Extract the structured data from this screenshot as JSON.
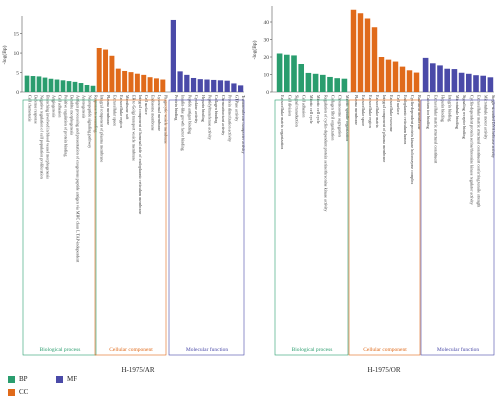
{
  "colors": {
    "bp": "#2a9d6e",
    "cc": "#e06a1a",
    "mf": "#4a4aa8",
    "axis": "#555555",
    "text": "#333333"
  },
  "legend": [
    {
      "key": "bp",
      "label": "BP"
    },
    {
      "key": "mf",
      "label": "MF"
    },
    {
      "key": "cc",
      "label": "CC"
    }
  ],
  "chart_data": [
    {
      "type": "bar",
      "title": "H-1975/AR",
      "ylabel": "-log(Bp)",
      "yticks": [
        0,
        5,
        10,
        15
      ],
      "ylim": [
        0,
        19
      ],
      "groups": [
        {
          "key": "bp",
          "label": "Biological process",
          "categories": [
            "Cell chemotaxis",
            "Defense response",
            "Negative regulation of cell population proliferation",
            "Branching involved in blood vessel morphogenesis",
            "Angiogenesis",
            "Cell adhesion",
            "Positive regulation of protein binding",
            "Dendrite morphogenesis",
            "Antigen processing and presentation of exogenous peptide antigen via MHC class I, TAP-independent",
            "Axonogenesis",
            "Neuropeptide signaling pathway",
            "Response to wounding"
          ],
          "values": [
            4.2,
            4.1,
            4.0,
            3.7,
            3.4,
            3.2,
            3.0,
            2.8,
            2.6,
            2.3,
            1.8,
            1.6
          ]
        },
        {
          "key": "cc",
          "label": "Cellular component",
          "categories": [
            "Integral component of plasma membrane",
            "Plasma membrane",
            "Extracellular space",
            "Extracellular region",
            "Membrane raft",
            "ER to Golgi transport vesicle membrane",
            "Integral component of lumenal side of endoplasmic reticulum membrane",
            "Cell surface",
            "Endosome membrane",
            "Lysosomal membrane",
            "Phagocytic vesicle membrane"
          ],
          "values": [
            11.3,
            10.9,
            9.3,
            6.0,
            5.4,
            5.1,
            4.7,
            4.4,
            3.8,
            3.5,
            3.2
          ]
        },
        {
          "key": "mf",
          "label": "Molecular function",
          "categories": [
            "Protein binding",
            "Insulin-like growth factor binding",
            "Peptide antigen binding",
            "Cytokine activity",
            "Heparin binding",
            "Peptidyltransferase activity",
            "Collagen binding",
            "Chemoattractant activity",
            "Protein dimerization activity",
            "GTPase activity",
            "Transmembrane transporter activity"
          ],
          "values": [
            18.5,
            5.3,
            4.4,
            3.6,
            3.3,
            3.2,
            3.1,
            3.0,
            2.9,
            2.2,
            1.7
          ]
        }
      ]
    },
    {
      "type": "bar",
      "title": "H-1975/OR",
      "ylabel": "-log(Bp)",
      "yticks": [
        0,
        10,
        20,
        30,
        40
      ],
      "ylim": [
        0,
        48
      ],
      "groups": [
        {
          "key": "bp",
          "label": "Biological process",
          "categories": [
            "Extracellular matrix organization",
            "Cell division",
            "Signal transduction",
            "Cell adhesion",
            "Mitotic cell cycle",
            "Mitotic cell cycle",
            "Regulation of cyclin-dependent protein serine/threonine kinase activity",
            "Collagen fibril organization",
            "Chromosome segregation",
            "Mitotic spindle organization"
          ],
          "values": [
            22.0,
            21.3,
            20.9,
            16.0,
            10.9,
            10.4,
            9.8,
            8.6,
            7.9,
            7.6
          ]
        },
        {
          "key": "cc",
          "label": "Cellular component",
          "categories": [
            "Plasma membrane",
            "Extracellular space",
            "Extracellular region",
            "Extracellular matrix",
            "Integral component of plasma membrane",
            "Extracellular exosome",
            "Cell surface",
            "Endoplasmic reticulum lumen",
            "Cyclin-dependent protein kinase holoenzyme complex",
            "Basement membrane"
          ],
          "values": [
            47.0,
            45.0,
            42.0,
            37.0,
            20.0,
            18.5,
            17.4,
            14.5,
            12.4,
            11.1
          ]
        },
        {
          "key": "mf",
          "label": "Molecular function",
          "categories": [
            "Calcium ion binding",
            "Extracellular matrix structural constituent",
            "Heparin binding",
            "Integrin binding",
            "Microtubule binding",
            "Signaling receptor binding",
            "Cyclin-dependent protein serine/threonine kinase regulator activity",
            "Extracellular matrix structural constituent conferring tensile strength",
            "Microtubule motor activity",
            "Single-stranded DNA helicase activity"
          ],
          "values": [
            19.5,
            16.4,
            15.2,
            13.3,
            13.1,
            11.0,
            10.4,
            9.6,
            9.3,
            8.4
          ]
        }
      ]
    }
  ]
}
